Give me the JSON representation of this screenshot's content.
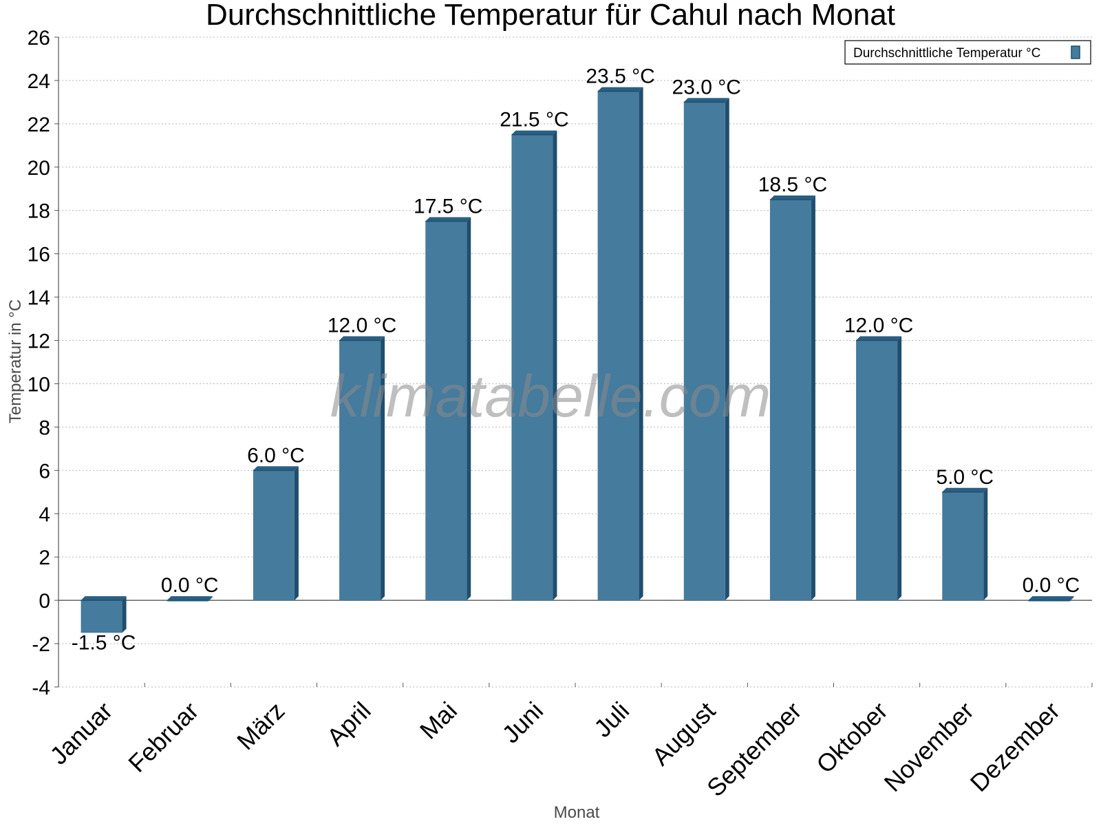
{
  "chart_data": {
    "type": "bar",
    "title": "Durchschnittliche Temperatur für Cahul nach Monat",
    "xlabel": "Monat",
    "ylabel": "Temperatur in °C",
    "categories": [
      "Januar",
      "Februar",
      "März",
      "April",
      "Mai",
      "Juni",
      "Juli",
      "August",
      "September",
      "Oktober",
      "November",
      "Dezember"
    ],
    "series": [
      {
        "name": "Durchschnittliche Temperatur °C",
        "values": [
          -1.5,
          0.0,
          6.0,
          12.0,
          17.5,
          21.5,
          23.5,
          23.0,
          18.5,
          12.0,
          5.0,
          0.0
        ],
        "labels": [
          "-1.5 °C",
          "0.0 °C",
          "6.0 °C",
          "12.0 °C",
          "17.5 °C",
          "21.5 °C",
          "23.5 °C",
          "23.0 °C",
          "18.5 °C",
          "12.0 °C",
          "5.0 °C",
          "0.0 °C"
        ],
        "color": "#457b9d"
      }
    ],
    "ylim": [
      -4,
      26
    ],
    "yticks": [
      "-4",
      "-2",
      "0",
      "2",
      "4",
      "6",
      "8",
      "10",
      "12",
      "14",
      "16",
      "18",
      "20",
      "22",
      "24",
      "26"
    ],
    "grid": true,
    "legend_position": "top-right",
    "watermark": "klimatabelle.com"
  }
}
